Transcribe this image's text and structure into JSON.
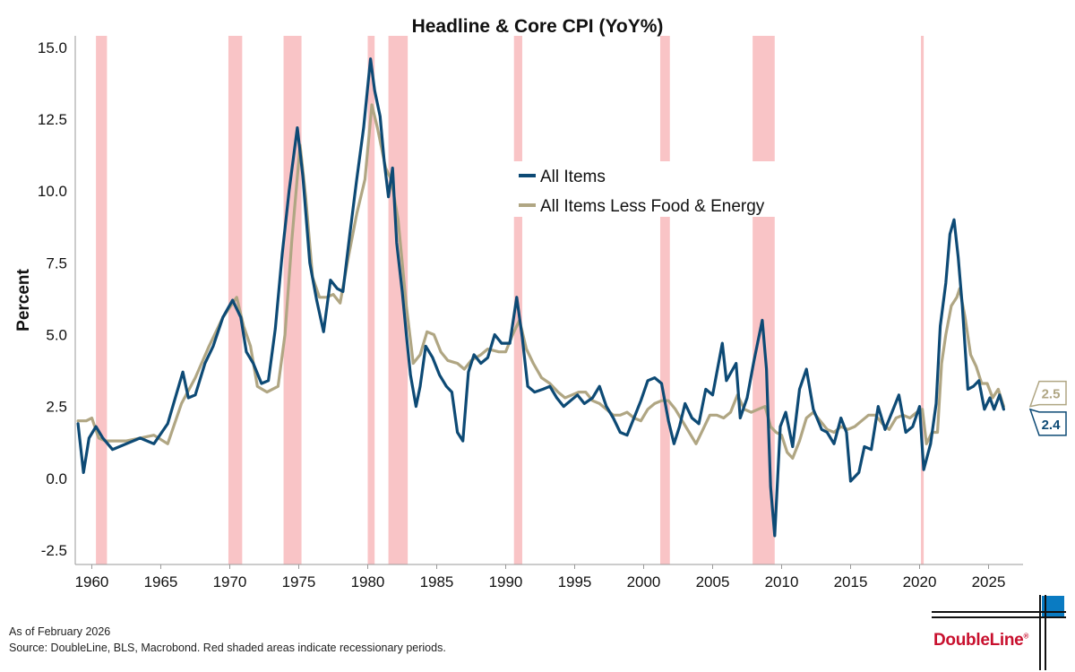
{
  "chart_data": {
    "type": "line",
    "title": "Headline & Core CPI (YoY%)",
    "ylabel": "Percent",
    "xlabel": "",
    "xlim": [
      1958.8,
      2027.5
    ],
    "ylim": [
      -3.0,
      15.4
    ],
    "yticks": [
      15.0,
      12.5,
      10.0,
      7.5,
      5.0,
      2.5,
      0.0,
      -2.5
    ],
    "ytick_labels": [
      "15.0",
      "12.5",
      "10.0",
      "7.5",
      "5.0",
      "2.5",
      "0.0",
      "-2.5"
    ],
    "xticks": [
      1960,
      1965,
      1970,
      1975,
      1980,
      1985,
      1990,
      1995,
      2000,
      2005,
      2010,
      2015,
      2020,
      2025
    ],
    "xtick_labels": [
      "1960",
      "1965",
      "1970",
      "1975",
      "1980",
      "1985",
      "1990",
      "1995",
      "2000",
      "2005",
      "2010",
      "2015",
      "2020",
      "2025"
    ],
    "grid": false,
    "legend_position": "upper-center",
    "recessions": [
      [
        1960.3,
        1961.1
      ],
      [
        1969.9,
        1970.9
      ],
      [
        1973.9,
        1975.2
      ],
      [
        1980.0,
        1980.5
      ],
      [
        1981.5,
        1982.9
      ],
      [
        1990.6,
        1991.2
      ],
      [
        2001.2,
        2001.9
      ],
      [
        2007.9,
        2009.5
      ],
      [
        2020.1,
        2020.3
      ]
    ],
    "series": [
      {
        "name": "All Items",
        "color": "#0d4a75",
        "end_label": "2.4",
        "points": [
          [
            1959.0,
            1.9
          ],
          [
            1959.4,
            0.2
          ],
          [
            1959.8,
            1.4
          ],
          [
            1960.3,
            1.8
          ],
          [
            1960.8,
            1.4
          ],
          [
            1961.5,
            1.0
          ],
          [
            1962.5,
            1.2
          ],
          [
            1963.5,
            1.4
          ],
          [
            1964.5,
            1.2
          ],
          [
            1965.5,
            1.9
          ],
          [
            1966.6,
            3.7
          ],
          [
            1967.0,
            2.8
          ],
          [
            1967.5,
            2.9
          ],
          [
            1968.2,
            4.0
          ],
          [
            1968.8,
            4.6
          ],
          [
            1969.5,
            5.6
          ],
          [
            1970.2,
            6.2
          ],
          [
            1970.8,
            5.6
          ],
          [
            1971.2,
            4.4
          ],
          [
            1971.7,
            4.0
          ],
          [
            1972.3,
            3.3
          ],
          [
            1972.8,
            3.4
          ],
          [
            1973.3,
            5.2
          ],
          [
            1973.8,
            7.8
          ],
          [
            1974.3,
            10.0
          ],
          [
            1974.9,
            12.2
          ],
          [
            1975.3,
            10.5
          ],
          [
            1975.8,
            7.5
          ],
          [
            1976.3,
            6.2
          ],
          [
            1976.8,
            5.1
          ],
          [
            1977.3,
            6.9
          ],
          [
            1977.8,
            6.6
          ],
          [
            1978.2,
            6.5
          ],
          [
            1978.7,
            8.5
          ],
          [
            1979.2,
            10.4
          ],
          [
            1979.7,
            12.2
          ],
          [
            1980.2,
            14.6
          ],
          [
            1980.5,
            13.5
          ],
          [
            1980.9,
            12.6
          ],
          [
            1981.2,
            11.0
          ],
          [
            1981.5,
            9.8
          ],
          [
            1981.8,
            10.8
          ],
          [
            1982.1,
            8.2
          ],
          [
            1982.5,
            6.5
          ],
          [
            1982.8,
            5.0
          ],
          [
            1983.1,
            3.6
          ],
          [
            1983.5,
            2.5
          ],
          [
            1983.8,
            3.2
          ],
          [
            1984.2,
            4.6
          ],
          [
            1984.7,
            4.2
          ],
          [
            1985.2,
            3.6
          ],
          [
            1985.7,
            3.2
          ],
          [
            1986.1,
            3.0
          ],
          [
            1986.5,
            1.6
          ],
          [
            1986.9,
            1.3
          ],
          [
            1987.3,
            3.7
          ],
          [
            1987.7,
            4.3
          ],
          [
            1988.2,
            4.0
          ],
          [
            1988.7,
            4.2
          ],
          [
            1989.2,
            5.0
          ],
          [
            1989.7,
            4.7
          ],
          [
            1990.3,
            4.7
          ],
          [
            1990.8,
            6.3
          ],
          [
            1991.2,
            4.9
          ],
          [
            1991.6,
            3.2
          ],
          [
            1992.1,
            3.0
          ],
          [
            1992.7,
            3.1
          ],
          [
            1993.2,
            3.2
          ],
          [
            1993.7,
            2.8
          ],
          [
            1994.2,
            2.5
          ],
          [
            1994.7,
            2.7
          ],
          [
            1995.2,
            2.9
          ],
          [
            1995.7,
            2.6
          ],
          [
            1996.3,
            2.8
          ],
          [
            1996.8,
            3.2
          ],
          [
            1997.3,
            2.5
          ],
          [
            1997.8,
            2.1
          ],
          [
            1998.3,
            1.6
          ],
          [
            1998.8,
            1.5
          ],
          [
            1999.3,
            2.1
          ],
          [
            1999.8,
            2.7
          ],
          [
            2000.3,
            3.4
          ],
          [
            2000.8,
            3.5
          ],
          [
            2001.3,
            3.3
          ],
          [
            2001.8,
            2.0
          ],
          [
            2002.2,
            1.2
          ],
          [
            2002.6,
            1.8
          ],
          [
            2003.0,
            2.6
          ],
          [
            2003.5,
            2.1
          ],
          [
            2004.0,
            1.9
          ],
          [
            2004.5,
            3.1
          ],
          [
            2005.0,
            2.9
          ],
          [
            2005.7,
            4.7
          ],
          [
            2006.0,
            3.4
          ],
          [
            2006.7,
            4.0
          ],
          [
            2007.0,
            2.1
          ],
          [
            2007.5,
            2.8
          ],
          [
            2008.0,
            4.1
          ],
          [
            2008.6,
            5.5
          ],
          [
            2008.9,
            3.8
          ],
          [
            2009.2,
            -0.3
          ],
          [
            2009.5,
            -2.0
          ],
          [
            2009.9,
            1.8
          ],
          [
            2010.3,
            2.3
          ],
          [
            2010.8,
            1.1
          ],
          [
            2011.3,
            3.1
          ],
          [
            2011.8,
            3.8
          ],
          [
            2012.3,
            2.4
          ],
          [
            2012.9,
            1.7
          ],
          [
            2013.3,
            1.6
          ],
          [
            2013.8,
            1.2
          ],
          [
            2014.3,
            2.1
          ],
          [
            2014.7,
            1.6
          ],
          [
            2015.0,
            -0.1
          ],
          [
            2015.6,
            0.2
          ],
          [
            2016.0,
            1.1
          ],
          [
            2016.5,
            1.0
          ],
          [
            2017.0,
            2.5
          ],
          [
            2017.5,
            1.7
          ],
          [
            2018.0,
            2.3
          ],
          [
            2018.5,
            2.9
          ],
          [
            2019.0,
            1.6
          ],
          [
            2019.5,
            1.8
          ],
          [
            2020.0,
            2.5
          ],
          [
            2020.3,
            0.3
          ],
          [
            2020.8,
            1.2
          ],
          [
            2021.2,
            2.6
          ],
          [
            2021.5,
            5.3
          ],
          [
            2021.9,
            6.8
          ],
          [
            2022.2,
            8.5
          ],
          [
            2022.5,
            9.0
          ],
          [
            2022.8,
            7.7
          ],
          [
            2023.1,
            6.0
          ],
          [
            2023.5,
            3.1
          ],
          [
            2023.9,
            3.2
          ],
          [
            2024.3,
            3.4
          ],
          [
            2024.7,
            2.4
          ],
          [
            2025.1,
            2.8
          ],
          [
            2025.4,
            2.4
          ],
          [
            2025.8,
            2.9
          ],
          [
            2026.1,
            2.4
          ]
        ]
      },
      {
        "name": "All Items Less Food & Energy",
        "color": "#b0a683",
        "end_label": "2.5",
        "points": [
          [
            1959.0,
            2.0
          ],
          [
            1959.6,
            2.0
          ],
          [
            1960.0,
            2.1
          ],
          [
            1960.5,
            1.4
          ],
          [
            1961.0,
            1.3
          ],
          [
            1961.5,
            1.3
          ],
          [
            1962.5,
            1.3
          ],
          [
            1963.5,
            1.4
          ],
          [
            1964.5,
            1.5
          ],
          [
            1965.5,
            1.2
          ],
          [
            1966.5,
            2.6
          ],
          [
            1967.5,
            3.5
          ],
          [
            1968.5,
            4.6
          ],
          [
            1969.5,
            5.6
          ],
          [
            1970.5,
            6.3
          ],
          [
            1971.0,
            5.3
          ],
          [
            1971.5,
            4.6
          ],
          [
            1972.0,
            3.2
          ],
          [
            1972.7,
            3.0
          ],
          [
            1973.5,
            3.2
          ],
          [
            1974.0,
            5.0
          ],
          [
            1974.5,
            8.3
          ],
          [
            1975.1,
            11.6
          ],
          [
            1975.5,
            9.8
          ],
          [
            1976.0,
            7.0
          ],
          [
            1976.5,
            6.3
          ],
          [
            1977.0,
            6.3
          ],
          [
            1977.5,
            6.4
          ],
          [
            1978.0,
            6.1
          ],
          [
            1978.6,
            7.7
          ],
          [
            1979.2,
            9.2
          ],
          [
            1979.8,
            10.4
          ],
          [
            1980.3,
            13.0
          ],
          [
            1980.7,
            12.2
          ],
          [
            1981.3,
            10.8
          ],
          [
            1981.7,
            10.4
          ],
          [
            1982.2,
            9.0
          ],
          [
            1982.8,
            6.0
          ],
          [
            1983.3,
            4.0
          ],
          [
            1983.8,
            4.3
          ],
          [
            1984.3,
            5.1
          ],
          [
            1984.8,
            5.0
          ],
          [
            1985.3,
            4.4
          ],
          [
            1985.8,
            4.1
          ],
          [
            1986.5,
            4.0
          ],
          [
            1987.0,
            3.8
          ],
          [
            1987.5,
            4.1
          ],
          [
            1988.2,
            4.3
          ],
          [
            1988.7,
            4.5
          ],
          [
            1989.5,
            4.4
          ],
          [
            1990.0,
            4.4
          ],
          [
            1990.5,
            5.0
          ],
          [
            1991.0,
            5.5
          ],
          [
            1991.5,
            4.5
          ],
          [
            1992.0,
            4.0
          ],
          [
            1992.6,
            3.5
          ],
          [
            1993.2,
            3.3
          ],
          [
            1993.8,
            3.0
          ],
          [
            1994.3,
            2.8
          ],
          [
            1994.8,
            2.9
          ],
          [
            1995.3,
            3.0
          ],
          [
            1995.8,
            3.0
          ],
          [
            1996.3,
            2.7
          ],
          [
            1996.8,
            2.6
          ],
          [
            1997.3,
            2.4
          ],
          [
            1997.8,
            2.2
          ],
          [
            1998.3,
            2.2
          ],
          [
            1998.8,
            2.3
          ],
          [
            1999.3,
            2.1
          ],
          [
            1999.8,
            2.0
          ],
          [
            2000.3,
            2.4
          ],
          [
            2000.8,
            2.6
          ],
          [
            2001.3,
            2.7
          ],
          [
            2001.8,
            2.7
          ],
          [
            2002.3,
            2.4
          ],
          [
            2002.8,
            2.0
          ],
          [
            2003.3,
            1.6
          ],
          [
            2003.8,
            1.2
          ],
          [
            2004.3,
            1.7
          ],
          [
            2004.8,
            2.2
          ],
          [
            2005.3,
            2.2
          ],
          [
            2005.8,
            2.1
          ],
          [
            2006.3,
            2.3
          ],
          [
            2006.8,
            2.9
          ],
          [
            2007.3,
            2.4
          ],
          [
            2007.8,
            2.3
          ],
          [
            2008.3,
            2.4
          ],
          [
            2008.8,
            2.5
          ],
          [
            2009.2,
            1.8
          ],
          [
            2009.6,
            1.6
          ],
          [
            2010.0,
            1.5
          ],
          [
            2010.4,
            0.9
          ],
          [
            2010.8,
            0.7
          ],
          [
            2011.3,
            1.3
          ],
          [
            2011.8,
            2.1
          ],
          [
            2012.3,
            2.3
          ],
          [
            2012.8,
            2.0
          ],
          [
            2013.3,
            1.7
          ],
          [
            2013.8,
            1.6
          ],
          [
            2014.3,
            1.8
          ],
          [
            2014.8,
            1.7
          ],
          [
            2015.3,
            1.8
          ],
          [
            2015.8,
            2.0
          ],
          [
            2016.3,
            2.2
          ],
          [
            2016.8,
            2.2
          ],
          [
            2017.3,
            1.9
          ],
          [
            2017.8,
            1.7
          ],
          [
            2018.3,
            2.1
          ],
          [
            2018.8,
            2.2
          ],
          [
            2019.3,
            2.1
          ],
          [
            2019.8,
            2.3
          ],
          [
            2020.2,
            2.4
          ],
          [
            2020.5,
            1.2
          ],
          [
            2020.9,
            1.6
          ],
          [
            2021.3,
            1.6
          ],
          [
            2021.6,
            4.0
          ],
          [
            2021.9,
            5.0
          ],
          [
            2022.3,
            6.0
          ],
          [
            2022.7,
            6.3
          ],
          [
            2022.9,
            6.6
          ],
          [
            2023.3,
            5.6
          ],
          [
            2023.7,
            4.3
          ],
          [
            2024.1,
            3.9
          ],
          [
            2024.5,
            3.3
          ],
          [
            2024.9,
            3.3
          ],
          [
            2025.3,
            2.8
          ],
          [
            2025.7,
            3.1
          ],
          [
            2026.1,
            2.5
          ]
        ]
      }
    ]
  },
  "footer": {
    "as_of": "As of February 2026",
    "source": "Source: DoubleLine, BLS, Macrobond. Red shaded areas indicate recessionary periods."
  },
  "brand": {
    "name": "DoubleLine",
    "reg_mark": "®",
    "colors": {
      "red": "#c8102e",
      "blue": "#0a7bc2",
      "dark": "#111111"
    }
  },
  "colors": {
    "recession_shade": "#f9c4c6",
    "axis": "#999999",
    "text": "#111111"
  }
}
